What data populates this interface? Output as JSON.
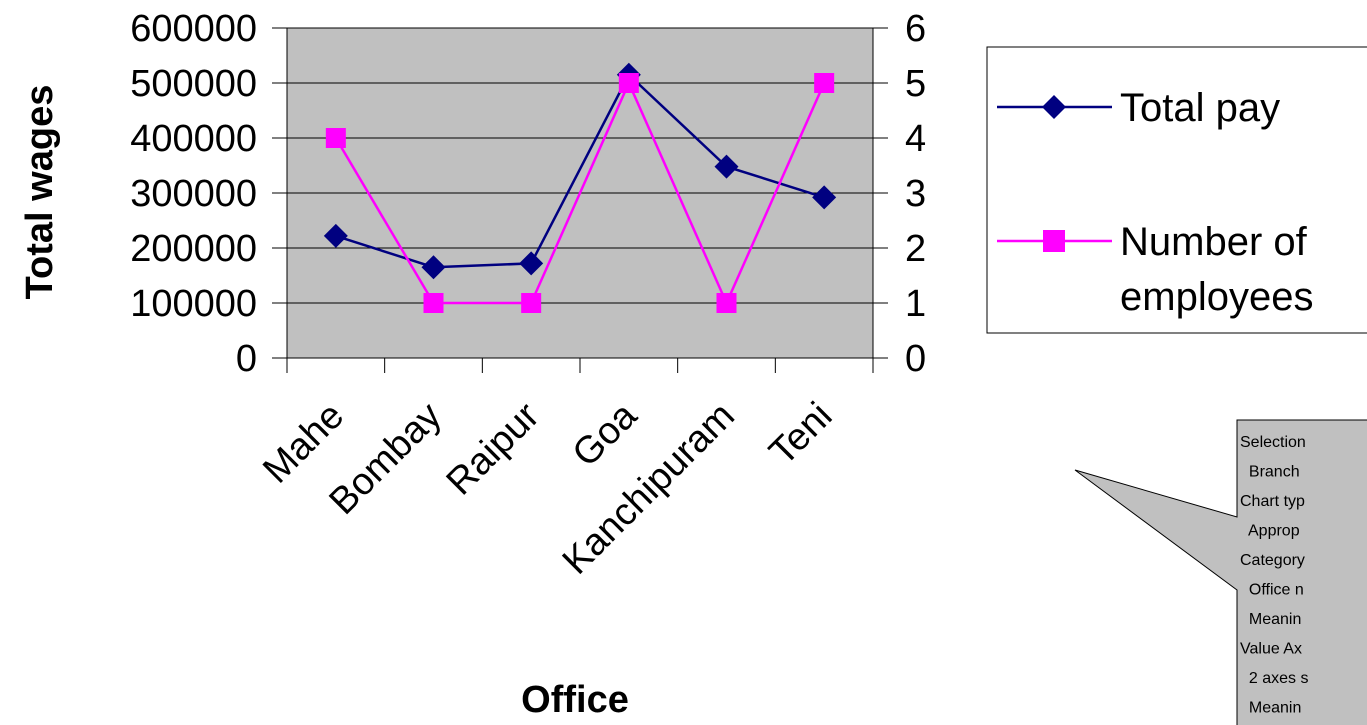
{
  "chart_data": {
    "type": "line",
    "categories": [
      "Mahe",
      "Bombay",
      "Raipur",
      "Goa",
      "Kanchipuram",
      "Teni"
    ],
    "xlabel": "Office",
    "ylabel": "Total wages",
    "ylim": [
      0,
      600000
    ],
    "y_ticks": [
      "0",
      "100000",
      "200000",
      "300000",
      "400000",
      "500000",
      "600000"
    ],
    "y2lim": [
      0,
      6
    ],
    "y2_ticks": [
      "0",
      "1",
      "2",
      "3",
      "4",
      "5",
      "6"
    ],
    "grid": true,
    "legend_position": "right",
    "series": [
      {
        "name": "Total pay",
        "axis": "left",
        "color": "#000080",
        "marker": "diamond",
        "values": [
          222000,
          165000,
          172000,
          515000,
          348000,
          292000
        ]
      },
      {
        "name": "Number of employees",
        "axis": "right",
        "color": "#ff00ff",
        "marker": "square",
        "values": [
          4,
          1,
          1,
          5,
          1,
          5
        ]
      }
    ],
    "plot_background": "#c0c0c0"
  },
  "legend": {
    "items": [
      {
        "lines": [
          "Total pay"
        ]
      },
      {
        "lines": [
          "Number of",
          "employees"
        ]
      }
    ]
  },
  "callout": {
    "lines": [
      "Selection",
      "  Branch",
      "Chart typ",
      "  Approp",
      "Category",
      "  Office n",
      "  Meanin",
      "Value Ax",
      "  2 axes s",
      "  Meanin"
    ]
  }
}
